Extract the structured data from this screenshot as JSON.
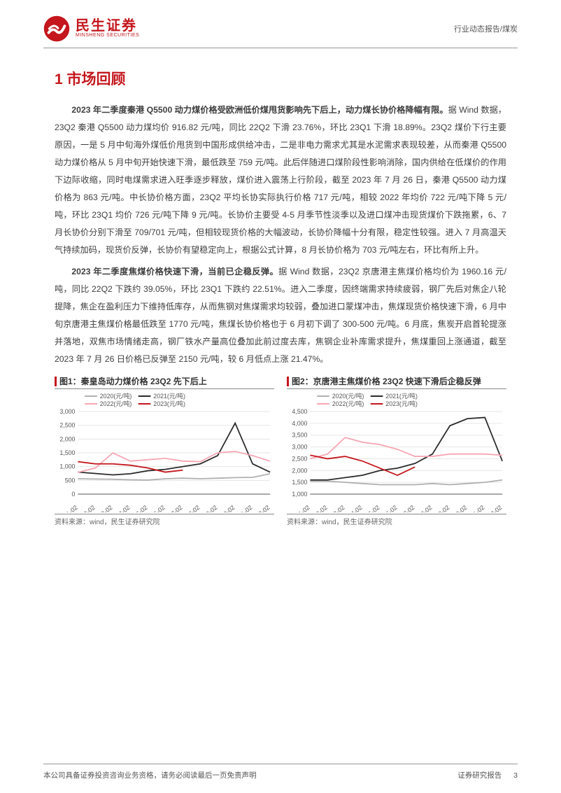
{
  "header": {
    "brand_cn": "民生证券",
    "brand_en": "MINSHENG SECURITIES",
    "doc_tag": "行业动态报告/煤炭",
    "logo_accent": "#c4161c"
  },
  "section": {
    "h1": "1 市场回顾"
  },
  "paragraphs": {
    "p1_bold": "2023 年二季度秦港 Q5500 动力煤价格受欧洲低价煤甩货影响先下后上，动力煤长协价格降幅有限。",
    "p1_rest": "据 Wind 数据，23Q2 秦港 Q5500 动力煤均价 916.82 元/吨，同比 22Q2 下滑 23.76%，环比 23Q1 下滑 18.89%。23Q2 煤价下行主要原因，一是 5 月中旬海外煤低价甩货到中国形成供给冲击，二是非电力需求尤其是水泥需求表现较差，从而秦港 Q5500 动力煤价格从 5 月中旬开始快速下滑，最低跌至 759 元/吨。此后伴随进口煤阶段性影响消除，国内供给在低煤价的作用下边际收缩，同时电煤需求进入旺季逐步释放，煤价进入震荡上行阶段，截至 2023 年 7 月 26 日，秦港 Q5500 动力煤价格为 863 元/吨。中长协价格方面，23Q2 平均长协实际执行价格 717 元/吨，相较 2022 年均价 722 元/吨下降 5 元/吨，环比 23Q1 均价 726 元/吨下降 9 元/吨。长协价主要受 4-5 月季节性淡季以及进口煤冲击现货煤价下跌拖累，6、7 月长协价分别下滑至 709/701 元/吨，但相较现货价格的大幅波动，长协价降幅十分有限，稳定性较强。进入 7 月高温天气持续加码，现货价反弹，长协价有望稳定向上，根据公式计算，8 月长协价格为 703 元/吨左右，环比有所上升。",
    "p2_bold": "2023 年二季度焦煤价格快速下滑，当前已企稳反弹。",
    "p2_rest": "据 Wind 数据，23Q2 京唐港主焦煤价格均价为 1960.16 元/吨，同比 22Q2 下跌约 39.05%，环比 23Q1 下跌约 22.51%。进入二季度，因终端需求持续疲弱，钢厂先后对焦企八轮提降，焦企在盈利压力下维持低库存，从而焦钢对焦煤需求均较弱，叠加进口蒙煤冲击，焦煤现货价格快速下滑，6 月中旬京唐港主焦煤价格最低跌至 1770 元/吨，焦煤长协价格也于 6 月初下调了 300-500 元/吨。6 月底，焦炭开启首轮提涨并落地，双焦市场情绪走高，钢厂铁水产量高位叠加此前过度去库，焦钢企业补库需求提升，焦煤重回上涨通道，截至 2023 年 7 月 26 日价格已反弹至 2150 元/吨，较 6 月低点上涨 21.47%。"
  },
  "chart1": {
    "title": "图1：秦皇岛动力煤价格 23Q2 先下后上",
    "source": "资料来源：wind，民生证券研究院",
    "type": "line",
    "legend": [
      "2020(元/吨)",
      "2021(元/吨)",
      "2022(元/吨)",
      "2023(元/吨)"
    ],
    "colors": {
      "2020": "#b0b0b0",
      "2021": "#2b2b2b",
      "2022": "#f7a6b4",
      "2023": "#c4161c"
    },
    "x_ticks": [
      "01-02",
      "02-02",
      "03-02",
      "04-02",
      "05-02",
      "06-02",
      "07-02",
      "08-02",
      "09-02",
      "10-02",
      "11-02",
      "12-02"
    ],
    "ylim": [
      0,
      3000
    ],
    "y_ticks": [
      0,
      500,
      1000,
      1500,
      2000,
      2500,
      3000
    ],
    "grid_color": "#e6e6e6",
    "bg": "#ffffff",
    "axis_color": "#555555",
    "label_fontsize": 9,
    "series": {
      "2020": [
        560,
        550,
        540,
        520,
        510,
        560,
        580,
        560,
        580,
        600,
        610,
        740
      ],
      "2021": [
        800,
        750,
        700,
        740,
        850,
        900,
        1000,
        1100,
        1400,
        2580,
        1100,
        800
      ],
      "2022": [
        790,
        950,
        1500,
        1200,
        1250,
        1300,
        1200,
        1180,
        1500,
        1550,
        1400,
        1200
      ],
      "2023": [
        1180,
        1100,
        1100,
        1050,
        950,
        800,
        870
      ]
    }
  },
  "chart2": {
    "title": "图2：京唐港主焦煤价格 23Q2 快速下滑后企稳反弹",
    "source": "资料来源：wind，民生证券研究院",
    "type": "line",
    "legend": [
      "2020(元/吨)",
      "2021(元/吨)",
      "2022(元/吨)",
      "2023(元/吨)"
    ],
    "colors": {
      "2020": "#b0b0b0",
      "2021": "#2b2b2b",
      "2022": "#f7a6b4",
      "2023": "#c4161c"
    },
    "x_ticks": [
      "01-02",
      "02-02",
      "03-02",
      "04-02",
      "05-02",
      "06-02",
      "07-02",
      "08-02",
      "09-02",
      "10-02",
      "11-02",
      "12-02"
    ],
    "ylim": [
      1000,
      4500
    ],
    "y_ticks": [
      1000,
      1500,
      2000,
      2500,
      3000,
      3500,
      4000,
      4500
    ],
    "grid_color": "#e6e6e6",
    "bg": "#ffffff",
    "axis_color": "#555555",
    "label_fontsize": 9,
    "series": {
      "2020": [
        1550,
        1550,
        1500,
        1450,
        1400,
        1400,
        1400,
        1450,
        1400,
        1450,
        1500,
        1600
      ],
      "2021": [
        1600,
        1600,
        1700,
        1800,
        2000,
        2100,
        2300,
        2700,
        3900,
        4200,
        4250,
        2400
      ],
      "2022": [
        2500,
        2700,
        3400,
        3200,
        3100,
        2900,
        2600,
        2600,
        2700,
        2700,
        2700,
        2650
      ],
      "2023": [
        2650,
        2500,
        2600,
        2400,
        2100,
        1800,
        2150
      ]
    }
  },
  "footer": {
    "left": "本公司具备证券投资咨询业务资格，请务必阅读最后一页免责声明",
    "right": "证券研究报告",
    "page": "3"
  }
}
